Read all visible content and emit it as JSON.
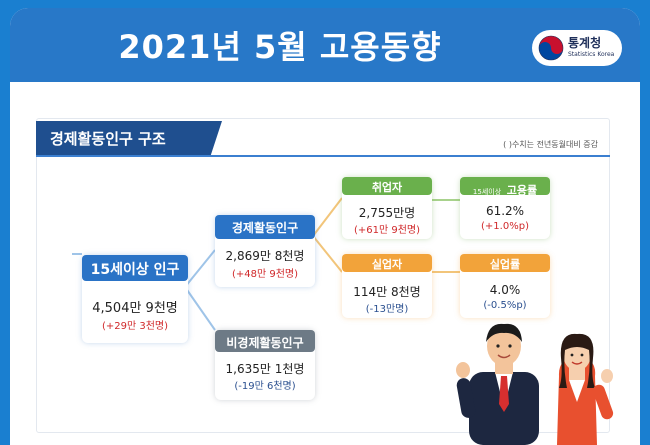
{
  "header": {
    "title": "2021년 5월 고용동향",
    "logo_name": "통계청",
    "logo_sub": "Statistics Korea"
  },
  "section": {
    "title": "경제활동인구 구조",
    "note": "( )수치는 전년동월대비 증감"
  },
  "nodes": {
    "pop15": {
      "label": "15세이상 인구",
      "value": "4,504만 9천명",
      "change": "(+29만 3천명)"
    },
    "active": {
      "label": "경제활동인구",
      "value": "2,869만 8천명",
      "change": "(+48만 9천명)"
    },
    "inactive": {
      "label": "비경제활동인구",
      "value": "1,635만 1천명",
      "change": "(-19만 6천명)"
    },
    "employed": {
      "label": "취업자",
      "value": "2,755만명",
      "change": "(+61만 9천명)"
    },
    "unemployed": {
      "label": "실업자",
      "value": "114만 8천명",
      "change": "(-13만명)"
    },
    "emp_rate": {
      "label_prefix": "15세이상",
      "label": "고용률",
      "value": "61.2%",
      "change": "(+1.0%p)"
    },
    "unemp_rate": {
      "label": "실업률",
      "value": "4.0%",
      "change": "(-0.5%p)"
    }
  },
  "colors": {
    "blue": "#2a73c6",
    "gray": "#6d7a86",
    "green": "#6ab04c",
    "orange": "#f2a33a",
    "red": "#d0282a"
  }
}
